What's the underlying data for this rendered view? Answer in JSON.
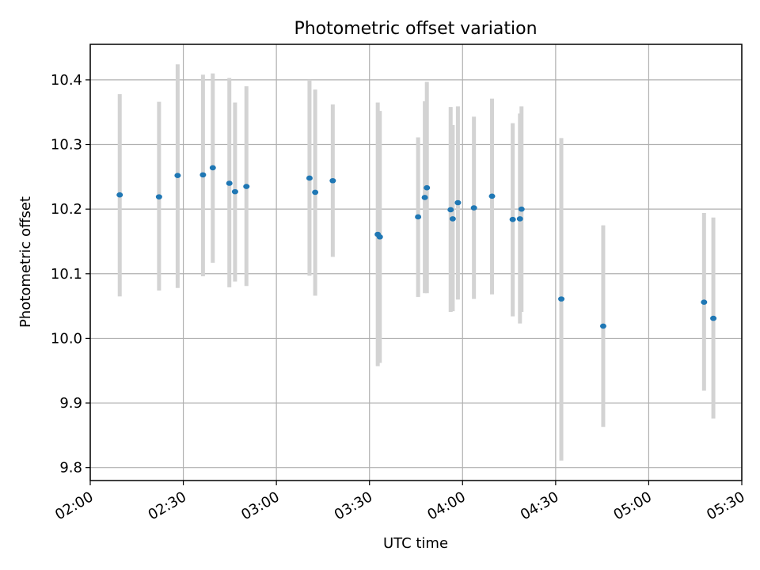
{
  "chart_data": {
    "type": "scatter",
    "title": "Photometric offset variation",
    "xlabel": "UTC time",
    "ylabel": "Photometric offset",
    "x_ticks": [
      "02:00",
      "02:30",
      "03:00",
      "03:30",
      "04:00",
      "04:30",
      "05:00",
      "05:30"
    ],
    "x_range": [
      "02:00",
      "05:30"
    ],
    "y_ticks": [
      "9.8",
      "9.9",
      "10.0",
      "10.1",
      "10.2",
      "10.3",
      "10.4"
    ],
    "ylim": [
      9.78,
      10.455
    ],
    "grid": true,
    "colors": {
      "point": "#1f77b4",
      "errorbar": "#d3d3d3",
      "grid": "#b0b0b0"
    },
    "points": [
      {
        "time": "02:09:30",
        "y": 10.222,
        "y_low": 10.065,
        "y_high": 10.378
      },
      {
        "time": "02:22:10",
        "y": 10.219,
        "y_low": 10.074,
        "y_high": 10.366
      },
      {
        "time": "02:28:10",
        "y": 10.252,
        "y_low": 10.078,
        "y_high": 10.424
      },
      {
        "time": "02:36:20",
        "y": 10.253,
        "y_low": 10.096,
        "y_high": 10.408
      },
      {
        "time": "02:39:30",
        "y": 10.264,
        "y_low": 10.117,
        "y_high": 10.41
      },
      {
        "time": "02:44:50",
        "y": 10.24,
        "y_low": 10.079,
        "y_high": 10.403
      },
      {
        "time": "02:46:40",
        "y": 10.227,
        "y_low": 10.088,
        "y_high": 10.365
      },
      {
        "time": "02:50:20",
        "y": 10.235,
        "y_low": 10.081,
        "y_high": 10.39
      },
      {
        "time": "03:10:40",
        "y": 10.248,
        "y_low": 10.097,
        "y_high": 10.4
      },
      {
        "time": "03:12:30",
        "y": 10.226,
        "y_low": 10.066,
        "y_high": 10.385
      },
      {
        "time": "03:18:10",
        "y": 10.244,
        "y_low": 10.126,
        "y_high": 10.362
      },
      {
        "time": "03:32:40",
        "y": 10.161,
        "y_low": 9.957,
        "y_high": 10.365
      },
      {
        "time": "03:33:20",
        "y": 10.157,
        "y_low": 9.962,
        "y_high": 10.352
      },
      {
        "time": "03:45:40",
        "y": 10.188,
        "y_low": 10.064,
        "y_high": 10.311
      },
      {
        "time": "03:47:50",
        "y": 10.218,
        "y_low": 10.07,
        "y_high": 10.367
      },
      {
        "time": "03:48:30",
        "y": 10.233,
        "y_low": 10.07,
        "y_high": 10.397
      },
      {
        "time": "03:56:10",
        "y": 10.199,
        "y_low": 10.041,
        "y_high": 10.358
      },
      {
        "time": "03:56:50",
        "y": 10.185,
        "y_low": 10.042,
        "y_high": 10.33
      },
      {
        "time": "03:58:30",
        "y": 10.21,
        "y_low": 10.06,
        "y_high": 10.359
      },
      {
        "time": "04:03:40",
        "y": 10.202,
        "y_low": 10.061,
        "y_high": 10.343
      },
      {
        "time": "04:09:30",
        "y": 10.22,
        "y_low": 10.068,
        "y_high": 10.371
      },
      {
        "time": "04:16:10",
        "y": 10.184,
        "y_low": 10.034,
        "y_high": 10.333
      },
      {
        "time": "04:18:30",
        "y": 10.185,
        "y_low": 10.023,
        "y_high": 10.348
      },
      {
        "time": "04:19:00",
        "y": 10.2,
        "y_low": 10.041,
        "y_high": 10.359
      },
      {
        "time": "04:31:50",
        "y": 10.061,
        "y_low": 9.811,
        "y_high": 10.31
      },
      {
        "time": "04:45:20",
        "y": 10.019,
        "y_low": 9.863,
        "y_high": 10.175
      },
      {
        "time": "05:17:50",
        "y": 10.056,
        "y_low": 9.919,
        "y_high": 10.194
      },
      {
        "time": "05:20:50",
        "y": 10.031,
        "y_low": 9.876,
        "y_high": 10.187
      }
    ]
  }
}
